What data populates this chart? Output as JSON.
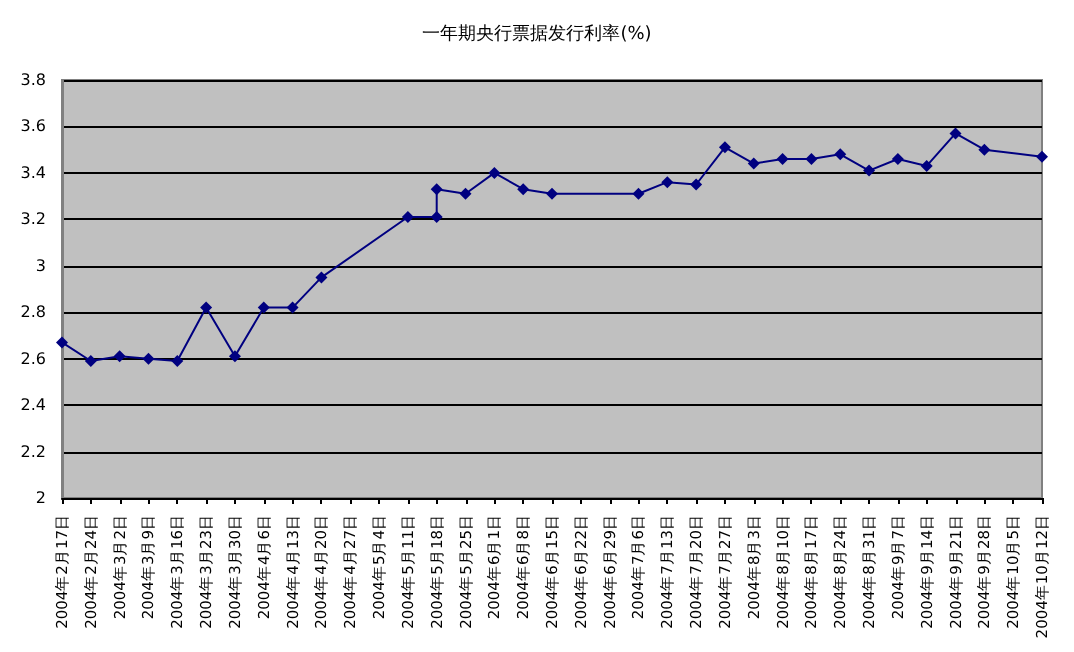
{
  "chart_data": {
    "type": "line",
    "title": "一年期央行票据发行利率(%)",
    "x": [
      "2004-02-17",
      "2004-02-24",
      "2004-03-02",
      "2004-03-09",
      "2004-03-16",
      "2004-03-23",
      "2004-03-30",
      "2004-04-06",
      "2004-04-13",
      "2004-04-20",
      "2004-05-11",
      "2004-05-18",
      "2004-05-18",
      "2004-05-25",
      "2004-06-01",
      "2004-06-08",
      "2004-06-15",
      "2004-07-06",
      "2004-07-13",
      "2004-07-20",
      "2004-07-27",
      "2004-08-03",
      "2004-08-10",
      "2004-08-17",
      "2004-08-24",
      "2004-08-31",
      "2004-09-07",
      "2004-09-14",
      "2004-09-21",
      "2004-09-28",
      "2004-10-12"
    ],
    "series": [
      {
        "color": "#000080",
        "values": [
          2.67,
          2.59,
          2.61,
          2.6,
          2.59,
          2.82,
          2.61,
          2.82,
          2.82,
          2.95,
          3.21,
          3.21,
          3.33,
          3.31,
          3.4,
          3.33,
          3.31,
          3.31,
          3.36,
          3.35,
          3.51,
          3.44,
          3.46,
          3.46,
          3.48,
          3.41,
          3.46,
          3.43,
          3.57,
          3.5,
          3.47
        ]
      }
    ],
    "xlim": [
      "2004-02-17",
      "2004-10-12"
    ],
    "xticks": [
      {
        "value": "2004-02-17",
        "label": "2004年2月17日"
      },
      {
        "value": "2004-02-24",
        "label": "2004年2月24日"
      },
      {
        "value": "2004-03-02",
        "label": "2004年3月2日"
      },
      {
        "value": "2004-03-09",
        "label": "2004年3月9日"
      },
      {
        "value": "2004-03-16",
        "label": "2004年3月16日"
      },
      {
        "value": "2004-03-23",
        "label": "2004年3月23日"
      },
      {
        "value": "2004-03-30",
        "label": "2004年3月30日"
      },
      {
        "value": "2004-04-06",
        "label": "2004年4月6日"
      },
      {
        "value": "2004-04-13",
        "label": "2004年4月13日"
      },
      {
        "value": "2004-04-20",
        "label": "2004年4月20日"
      },
      {
        "value": "2004-04-27",
        "label": "2004年4月27日"
      },
      {
        "value": "2004-05-04",
        "label": "2004年5月4日"
      },
      {
        "value": "2004-05-11",
        "label": "2004年5月11日"
      },
      {
        "value": "2004-05-18",
        "label": "2004年5月18日"
      },
      {
        "value": "2004-05-25",
        "label": "2004年5月25日"
      },
      {
        "value": "2004-06-01",
        "label": "2004年6月1日"
      },
      {
        "value": "2004-06-08",
        "label": "2004年6月8日"
      },
      {
        "value": "2004-06-15",
        "label": "2004年6月15日"
      },
      {
        "value": "2004-06-22",
        "label": "2004年6月22日"
      },
      {
        "value": "2004-06-29",
        "label": "2004年6月29日"
      },
      {
        "value": "2004-07-06",
        "label": "2004年7月6日"
      },
      {
        "value": "2004-07-13",
        "label": "2004年7月13日"
      },
      {
        "value": "2004-07-20",
        "label": "2004年7月20日"
      },
      {
        "value": "2004-07-27",
        "label": "2004年7月27日"
      },
      {
        "value": "2004-08-03",
        "label": "2004年8月3日"
      },
      {
        "value": "2004-08-10",
        "label": "2004年8月10日"
      },
      {
        "value": "2004-08-17",
        "label": "2004年8月17日"
      },
      {
        "value": "2004-08-24",
        "label": "2004年8月24日"
      },
      {
        "value": "2004-08-31",
        "label": "2004年8月31日"
      },
      {
        "value": "2004-09-07",
        "label": "2004年9月7日"
      },
      {
        "value": "2004-09-14",
        "label": "2004年9月14日"
      },
      {
        "value": "2004-09-21",
        "label": "2004年9月21日"
      },
      {
        "value": "2004-09-28",
        "label": "2004年9月28日"
      },
      {
        "value": "2004-10-05",
        "label": "2004年10月5日"
      },
      {
        "value": "2004-10-12",
        "label": "2004年10月12日"
      }
    ],
    "ylim": [
      2,
      3.8
    ],
    "yticks": [
      2,
      2.2,
      2.4,
      2.6,
      2.8,
      3,
      3.2,
      3.4,
      3.6,
      3.8
    ],
    "grid": "y",
    "marker": "diamond",
    "line_style": "solid"
  }
}
